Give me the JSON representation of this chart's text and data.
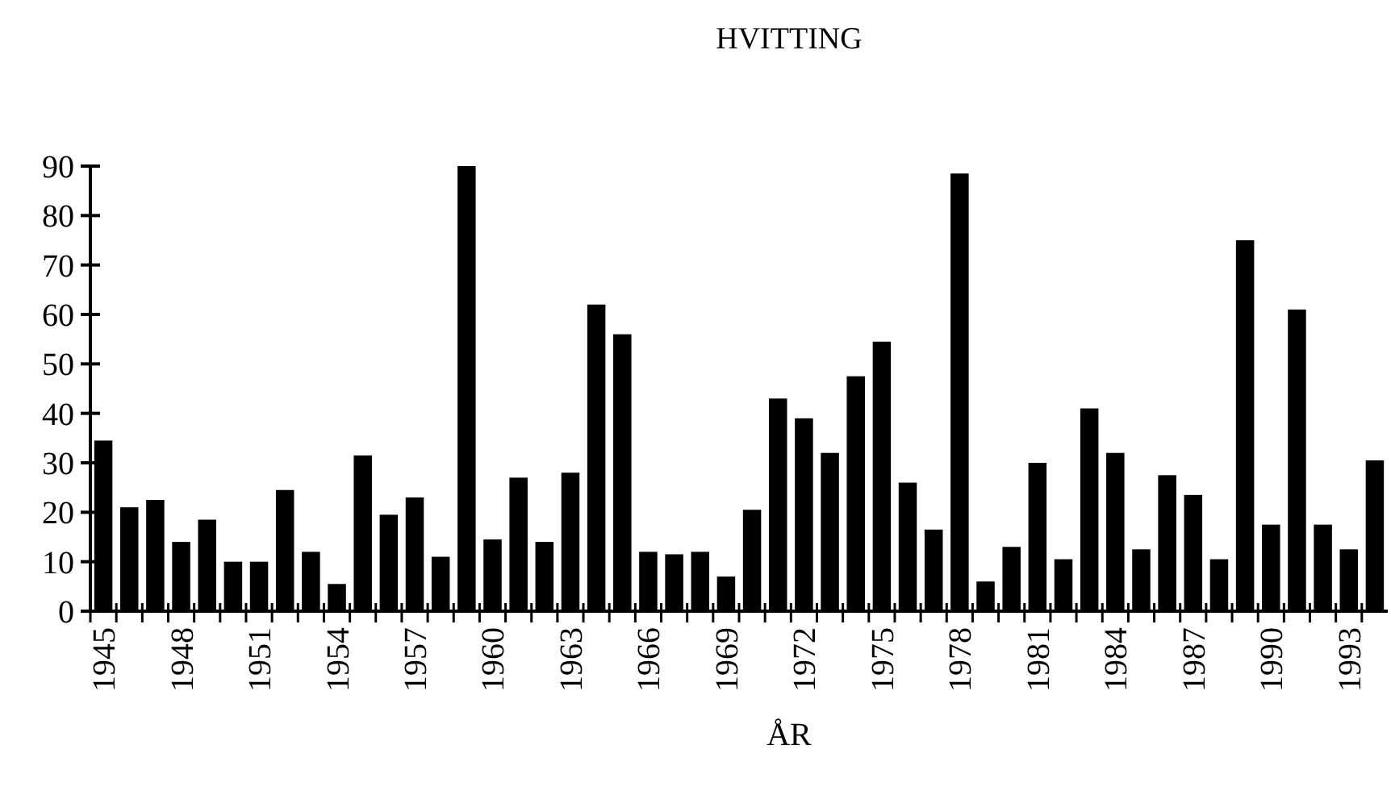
{
  "chart_data": {
    "type": "bar",
    "title": "HVITTING",
    "xlabel": "ÅR",
    "categories": [
      "1945",
      null,
      null,
      "1948",
      null,
      null,
      "1951",
      null,
      null,
      "1954",
      null,
      null,
      "1957",
      null,
      null,
      "1960",
      null,
      null,
      "1963",
      null,
      null,
      "1966",
      null,
      null,
      "1969",
      null,
      null,
      "1972",
      null,
      null,
      "1975",
      null,
      null,
      "1978",
      null,
      null,
      "1981",
      null,
      null,
      "1984",
      null,
      null,
      "1987",
      null,
      null,
      "1990",
      null,
      null,
      "1993",
      null
    ],
    "values": [
      34.5,
      21,
      22.5,
      14,
      18.5,
      10,
      10,
      24.5,
      12,
      5.5,
      31.5,
      19.5,
      23,
      11,
      90,
      14.5,
      27,
      14,
      28,
      62,
      56,
      12,
      11.5,
      12,
      7,
      20.5,
      43,
      39,
      32,
      47.5,
      54.5,
      26,
      16.5,
      88.5,
      6,
      13,
      30,
      10.5,
      41,
      32,
      12.5,
      27.5,
      23.5,
      10.5,
      75,
      17.5,
      61,
      17.5,
      12.5,
      30.5
    ],
    "color": "#000000",
    "ylim": [
      0,
      90
    ],
    "yticks": [
      0,
      10,
      20,
      30,
      40,
      50,
      60,
      70,
      80,
      90
    ]
  }
}
